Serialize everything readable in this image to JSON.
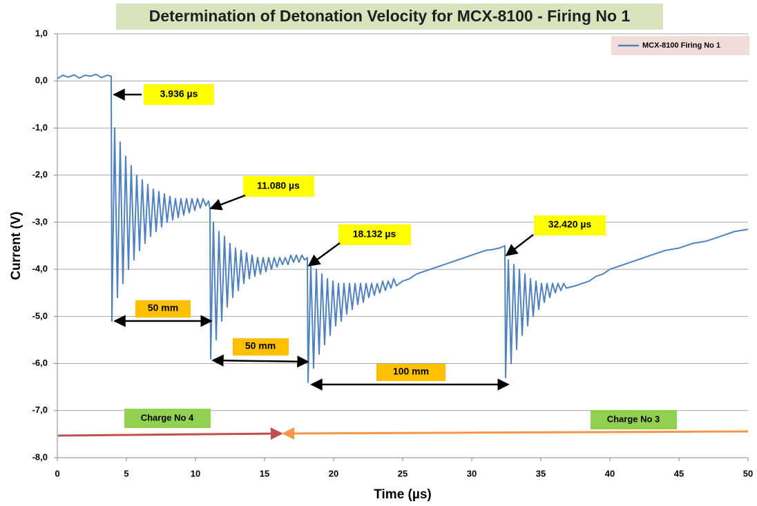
{
  "chart_data": {
    "type": "line",
    "title": "Determination of Detonation Velocity for MCX-8100 - Firing No 1",
    "x_label": "Time (µs)",
    "y_label": "Current (V)",
    "xlim": [
      0,
      50
    ],
    "xticks": [
      0,
      5,
      10,
      15,
      20,
      25,
      30,
      35,
      40,
      45,
      50
    ],
    "ylim": [
      -8,
      1
    ],
    "yticks": [
      {
        "value": -8,
        "label": "-8,0"
      },
      {
        "value": -7,
        "label": "-7,0"
      },
      {
        "value": -6,
        "label": "-6,0"
      },
      {
        "value": -5,
        "label": "-5,0"
      },
      {
        "value": -4,
        "label": "-4,0"
      },
      {
        "value": -3,
        "label": "-3,0"
      },
      {
        "value": -2,
        "label": "-2,0"
      },
      {
        "value": -1,
        "label": "-1,0"
      },
      {
        "value": 0,
        "label": "0,0"
      },
      {
        "value": 1,
        "label": "1,0"
      }
    ],
    "grid": true,
    "legend": "upper right",
    "x": [
      0,
      0.4,
      0.8,
      1.2,
      1.6,
      2.0,
      2.4,
      2.8,
      3.2,
      3.6,
      3.9,
      3.95,
      4.15,
      4.35,
      4.55,
      4.75,
      4.95,
      5.15,
      5.35,
      5.55,
      5.75,
      5.95,
      6.15,
      6.35,
      6.55,
      6.75,
      6.95,
      7.15,
      7.35,
      7.55,
      7.75,
      7.95,
      8.15,
      8.35,
      8.55,
      8.75,
      8.95,
      9.15,
      9.35,
      9.55,
      9.75,
      9.95,
      10.15,
      10.35,
      10.55,
      10.75,
      10.95,
      11.05,
      11.1,
      11.3,
      11.5,
      11.7,
      11.9,
      12.1,
      12.3,
      12.5,
      12.7,
      12.9,
      13.1,
      13.3,
      13.5,
      13.7,
      13.9,
      14.1,
      14.3,
      14.5,
      14.7,
      14.9,
      15.1,
      15.3,
      15.5,
      15.7,
      15.9,
      16.1,
      16.3,
      16.5,
      16.7,
      16.9,
      17.1,
      17.3,
      17.5,
      17.7,
      17.9,
      18.1,
      18.15,
      18.35,
      18.55,
      18.75,
      18.95,
      19.15,
      19.35,
      19.55,
      19.75,
      19.95,
      20.15,
      20.35,
      20.55,
      20.75,
      20.95,
      21.15,
      21.35,
      21.55,
      21.75,
      21.95,
      22.15,
      22.35,
      22.55,
      22.75,
      22.95,
      23.15,
      23.35,
      23.55,
      23.75,
      23.95,
      24.15,
      24.35,
      24.55,
      25.0,
      25.5,
      26,
      26.5,
      27,
      27.5,
      28,
      28.5,
      29,
      29.5,
      30,
      30.5,
      31,
      31.5,
      32,
      32.4,
      32.45,
      32.65,
      32.85,
      33.05,
      33.25,
      33.45,
      33.65,
      33.85,
      34.05,
      34.25,
      34.45,
      34.65,
      34.85,
      35.05,
      35.25,
      35.45,
      35.65,
      35.85,
      36.05,
      36.25,
      36.45,
      36.65,
      36.85,
      37.5,
      38,
      38.5,
      39,
      39.5,
      40,
      41,
      42,
      43,
      44,
      45,
      46,
      47,
      48,
      49,
      50
    ],
    "series": [
      {
        "name": "MCX-8100 Firing No 1",
        "color": "#4f81bd",
        "values": [
          0.05,
          0.12,
          0.08,
          0.13,
          0.06,
          0.12,
          0.1,
          0.14,
          0.07,
          0.12,
          0.1,
          -5.1,
          -1.0,
          -4.6,
          -1.3,
          -4.3,
          -1.6,
          -4.0,
          -1.8,
          -3.8,
          -2.0,
          -3.6,
          -2.1,
          -3.45,
          -2.2,
          -3.3,
          -2.3,
          -3.2,
          -2.35,
          -3.1,
          -2.4,
          -3.0,
          -2.45,
          -2.95,
          -2.5,
          -2.9,
          -2.5,
          -2.85,
          -2.5,
          -2.8,
          -2.5,
          -2.75,
          -2.5,
          -2.7,
          -2.5,
          -2.65,
          -2.55,
          -2.7,
          -5.9,
          -3.0,
          -5.5,
          -3.2,
          -5.1,
          -3.3,
          -4.8,
          -3.45,
          -4.6,
          -3.55,
          -4.45,
          -3.6,
          -4.3,
          -3.65,
          -4.2,
          -3.7,
          -4.15,
          -3.75,
          -4.1,
          -3.75,
          -4.05,
          -3.75,
          -4.0,
          -3.75,
          -3.95,
          -3.75,
          -3.9,
          -3.75,
          -3.9,
          -3.7,
          -3.85,
          -3.7,
          -3.85,
          -3.7,
          -3.8,
          -3.75,
          -6.4,
          -3.9,
          -6.1,
          -4.0,
          -5.8,
          -4.1,
          -5.6,
          -4.2,
          -5.4,
          -4.25,
          -5.2,
          -4.3,
          -5.1,
          -4.3,
          -4.95,
          -4.3,
          -4.85,
          -4.3,
          -4.75,
          -4.3,
          -4.7,
          -4.3,
          -4.6,
          -4.3,
          -4.55,
          -4.3,
          -4.5,
          -4.25,
          -4.45,
          -4.25,
          -4.4,
          -4.2,
          -4.35,
          -4.25,
          -4.2,
          -4.1,
          -4.05,
          -4.0,
          -3.95,
          -3.9,
          -3.85,
          -3.8,
          -3.75,
          -3.7,
          -3.65,
          -3.6,
          -3.58,
          -3.55,
          -3.5,
          -6.3,
          -3.8,
          -6.0,
          -3.9,
          -5.7,
          -4.0,
          -5.4,
          -4.1,
          -5.2,
          -4.2,
          -5.0,
          -4.25,
          -4.85,
          -4.3,
          -4.7,
          -4.3,
          -4.6,
          -4.3,
          -4.5,
          -4.3,
          -4.45,
          -4.3,
          -4.4,
          -4.35,
          -4.3,
          -4.25,
          -4.15,
          -4.1,
          -4.0,
          -3.9,
          -3.8,
          -3.7,
          -3.6,
          -3.55,
          -3.45,
          -3.4,
          -3.3,
          -3.2,
          -3.15
        ]
      }
    ],
    "annotations": [
      "3.936 µs",
      "11.080 µs",
      "18.132 µs",
      "32.420 µs",
      "50 mm",
      "50 mm",
      "100 mm",
      "Charge  No 4",
      "Charge  No 3"
    ]
  }
}
